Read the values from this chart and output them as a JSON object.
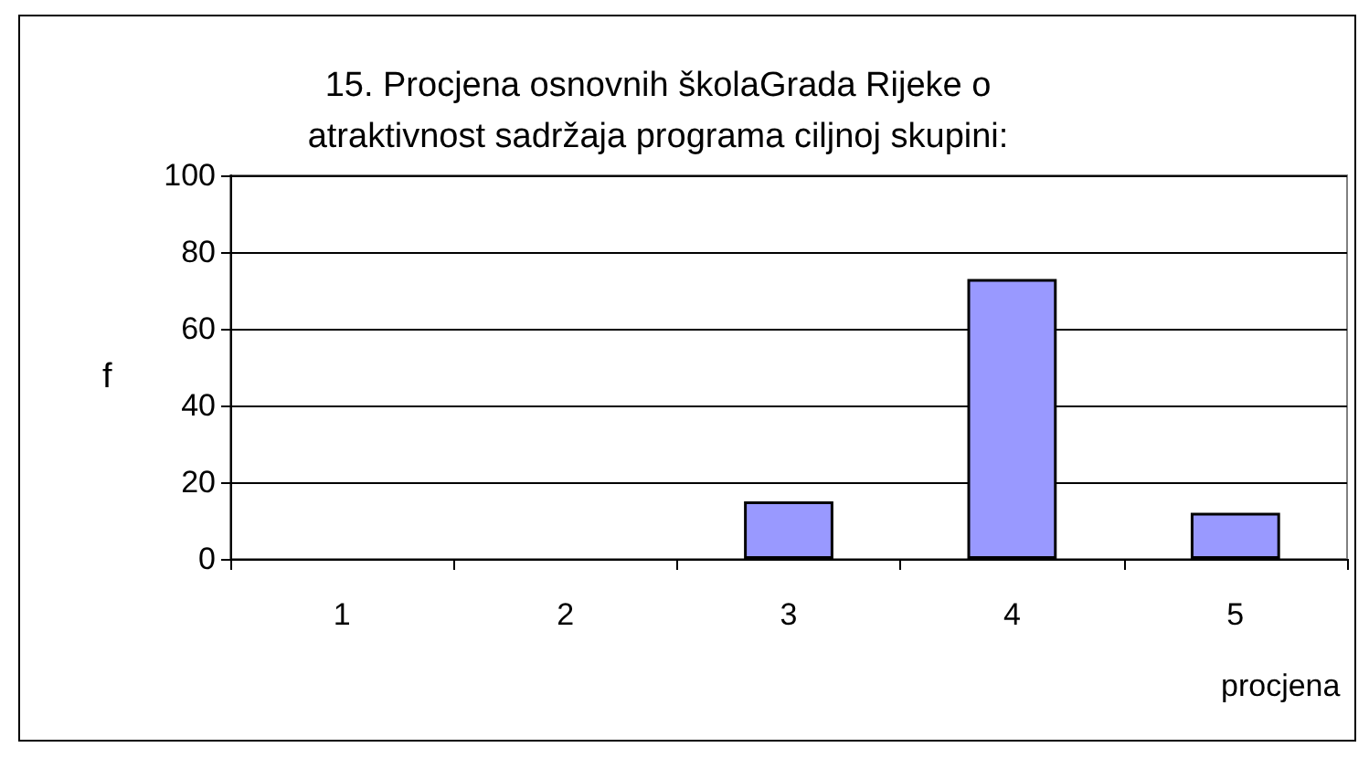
{
  "chart_data": {
    "type": "bar",
    "title": "15. Procjena osnovnih školaGrada Rijeke o\natraktivnost sadržaja programa ciljnoj skupini:",
    "xlabel": "procjena",
    "ylabel": "f",
    "categories": [
      "1",
      "2",
      "3",
      "4",
      "5"
    ],
    "series": [
      {
        "color": "#9999ff",
        "values": [
          0,
          0,
          15,
          73,
          12
        ]
      }
    ],
    "ylim": [
      0,
      100
    ],
    "yticks": [
      0,
      20,
      40,
      60,
      80,
      100
    ],
    "grid": "y"
  }
}
